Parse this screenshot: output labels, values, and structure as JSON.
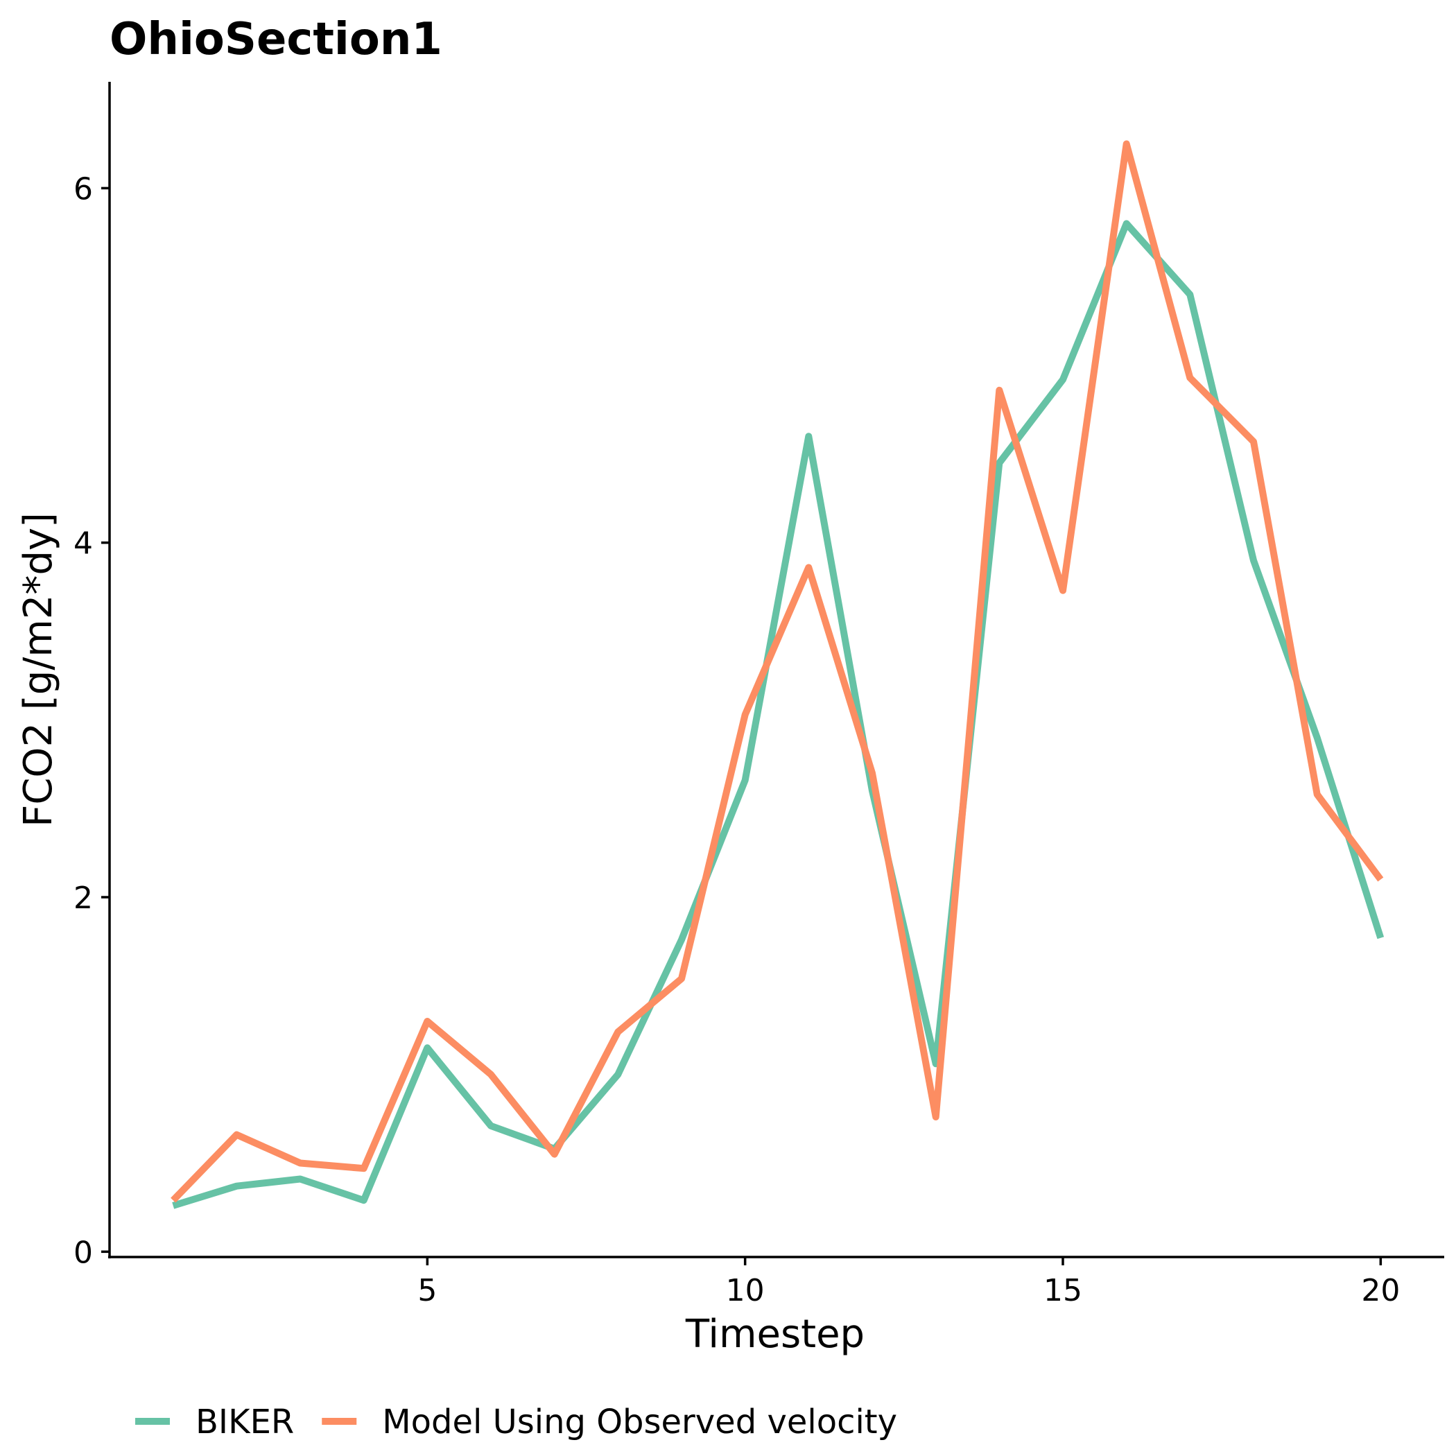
{
  "chart_data": {
    "type": "line",
    "title": "OhioSection1",
    "xlabel": "Timestep",
    "ylabel": "FCO2 [g/m2*dy]",
    "xlim": [
      0.0,
      21.0
    ],
    "ylim": [
      -0.03,
      6.6
    ],
    "xticks": [
      5,
      10,
      15,
      20
    ],
    "yticks": [
      0,
      2,
      4,
      6
    ],
    "grid": false,
    "legend_position": "bottom-left",
    "x": [
      1,
      2,
      3,
      4,
      5,
      6,
      7,
      8,
      9,
      10,
      11,
      12,
      13,
      14,
      15,
      16,
      17,
      18,
      19,
      20
    ],
    "series": [
      {
        "name": "BIKER",
        "color": "#66c2a5",
        "values": [
          0.26,
          0.37,
          0.41,
          0.29,
          1.15,
          0.71,
          0.58,
          1.0,
          1.76,
          2.66,
          4.6,
          2.6,
          1.06,
          4.45,
          4.92,
          5.8,
          5.4,
          3.9,
          2.9,
          1.77
        ]
      },
      {
        "name": "Model Using Observed velocity",
        "color": "#fc8d62",
        "values": [
          0.29,
          0.66,
          0.5,
          0.47,
          1.3,
          1.0,
          0.55,
          1.24,
          1.54,
          3.03,
          3.86,
          2.7,
          0.76,
          4.86,
          3.73,
          6.25,
          4.93,
          4.57,
          2.58,
          2.1
        ]
      }
    ]
  }
}
